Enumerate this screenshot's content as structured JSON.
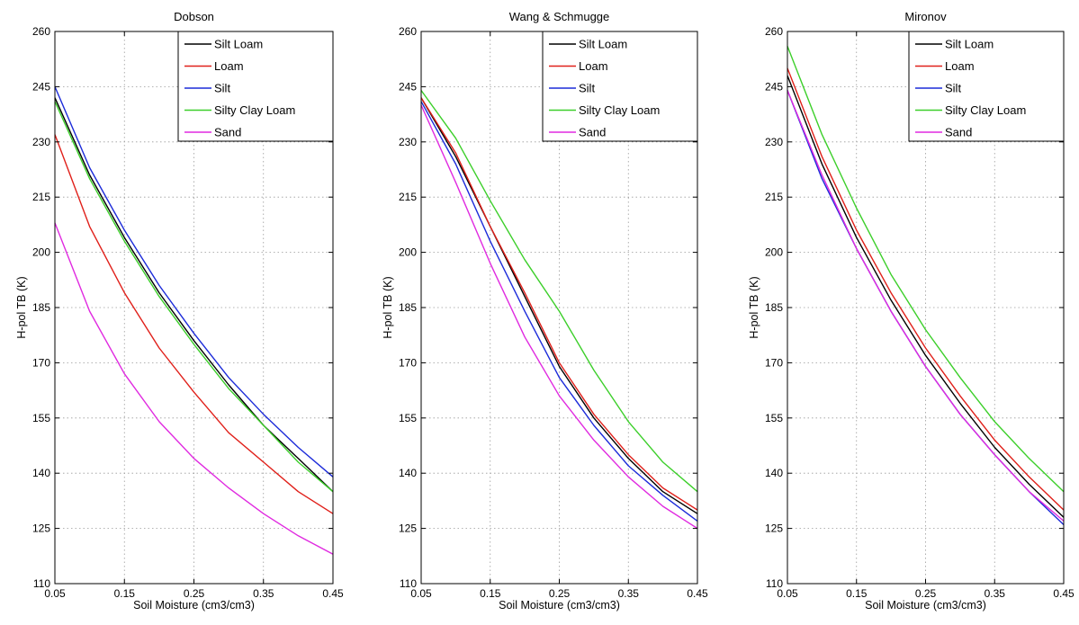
{
  "figure": {
    "background": "#ffffff",
    "series_colors": {
      "Silt Loam": "#000000",
      "Loam": "#e0201a",
      "Silt": "#1c2bd9",
      "Silty Clay Loam": "#3ccf2a",
      "Sand": "#e02ae0"
    }
  },
  "chart_data": [
    {
      "type": "line",
      "title": "Dobson",
      "xlabel": "Soil Moisture (cm3/cm3)",
      "ylabel": "H-pol TB (K)",
      "xlim": [
        0.05,
        0.45
      ],
      "ylim": [
        110,
        260
      ],
      "xticks": [
        "0.05",
        "0.15",
        "0.25",
        "0.35",
        "0.45"
      ],
      "yticks": [
        "110",
        "125",
        "140",
        "155",
        "170",
        "185",
        "200",
        "215",
        "230",
        "245",
        "260"
      ],
      "grid": true,
      "legend_position": "top-right",
      "x": [
        0.05,
        0.1,
        0.15,
        0.2,
        0.25,
        0.3,
        0.35,
        0.4,
        0.45
      ],
      "series": [
        {
          "name": "Silt Loam",
          "color": "#000000",
          "values": [
            242,
            221,
            204,
            189,
            176,
            164,
            153,
            144,
            135
          ]
        },
        {
          "name": "Loam",
          "color": "#e0201a",
          "values": [
            232,
            207,
            189,
            174,
            162,
            151,
            143,
            135,
            129
          ]
        },
        {
          "name": "Silt",
          "color": "#1c2bd9",
          "values": [
            245,
            223,
            206,
            191,
            178,
            166,
            156,
            147,
            139
          ]
        },
        {
          "name": "Silty Clay Loam",
          "color": "#3ccf2a",
          "values": [
            241,
            220,
            203,
            188,
            175,
            163,
            153,
            143,
            135
          ]
        },
        {
          "name": "Sand",
          "color": "#e02ae0",
          "values": [
            208,
            184,
            167,
            154,
            144,
            136,
            129,
            123,
            118
          ]
        }
      ]
    },
    {
      "type": "line",
      "title": "Wang & Schmugge",
      "xlabel": "Soil Moisture (cm3/cm3)",
      "ylabel": "H-pol TB (K)",
      "xlim": [
        0.05,
        0.45
      ],
      "ylim": [
        110,
        260
      ],
      "xticks": [
        "0.05",
        "0.15",
        "0.25",
        "0.35",
        "0.45"
      ],
      "yticks": [
        "110",
        "125",
        "140",
        "155",
        "170",
        "185",
        "200",
        "215",
        "230",
        "245",
        "260"
      ],
      "grid": true,
      "legend_position": "top-right",
      "x": [
        0.05,
        0.1,
        0.15,
        0.2,
        0.25,
        0.3,
        0.35,
        0.4,
        0.45
      ],
      "series": [
        {
          "name": "Silt Loam",
          "color": "#000000",
          "values": [
            242,
            226,
            207,
            188,
            169,
            155,
            144,
            135,
            129
          ]
        },
        {
          "name": "Loam",
          "color": "#e0201a",
          "values": [
            242,
            227,
            207,
            189,
            170,
            156,
            145,
            136,
            130
          ]
        },
        {
          "name": "Silt",
          "color": "#1c2bd9",
          "values": [
            241,
            224,
            203,
            184,
            166,
            153,
            142,
            134,
            127
          ]
        },
        {
          "name": "Silty Clay Loam",
          "color": "#3ccf2a",
          "values": [
            244,
            231,
            214,
            198,
            184,
            168,
            154,
            143,
            135
          ]
        },
        {
          "name": "Sand",
          "color": "#e02ae0",
          "values": [
            240,
            219,
            197,
            177,
            161,
            149,
            139,
            131,
            125
          ]
        }
      ]
    },
    {
      "type": "line",
      "title": "Mironov",
      "xlabel": "Soil Moisture (cm3/cm3)",
      "ylabel": "H-pol TB (K)",
      "xlim": [
        0.05,
        0.45
      ],
      "ylim": [
        110,
        260
      ],
      "xticks": [
        "0.05",
        "0.15",
        "0.25",
        "0.35",
        "0.45"
      ],
      "yticks": [
        "110",
        "125",
        "140",
        "155",
        "170",
        "185",
        "200",
        "215",
        "230",
        "245",
        "260"
      ],
      "grid": true,
      "legend_position": "top-right",
      "x": [
        0.05,
        0.1,
        0.15,
        0.2,
        0.25,
        0.3,
        0.35,
        0.4,
        0.45
      ],
      "series": [
        {
          "name": "Silt Loam",
          "color": "#000000",
          "values": [
            248,
            224,
            204,
            187,
            172,
            159,
            147,
            137,
            128
          ]
        },
        {
          "name": "Loam",
          "color": "#e0201a",
          "values": [
            250,
            226,
            206,
            189,
            174,
            161,
            149,
            139,
            130
          ]
        },
        {
          "name": "Silt",
          "color": "#1c2bd9",
          "values": [
            244,
            220,
            201,
            184,
            169,
            156,
            145,
            135,
            126
          ]
        },
        {
          "name": "Silty Clay Loam",
          "color": "#3ccf2a",
          "values": [
            256,
            232,
            212,
            194,
            179,
            166,
            154,
            144,
            135
          ]
        },
        {
          "name": "Sand",
          "color": "#e02ae0",
          "values": [
            244,
            221,
            201,
            184,
            169,
            156,
            145,
            135,
            127
          ]
        }
      ]
    }
  ]
}
